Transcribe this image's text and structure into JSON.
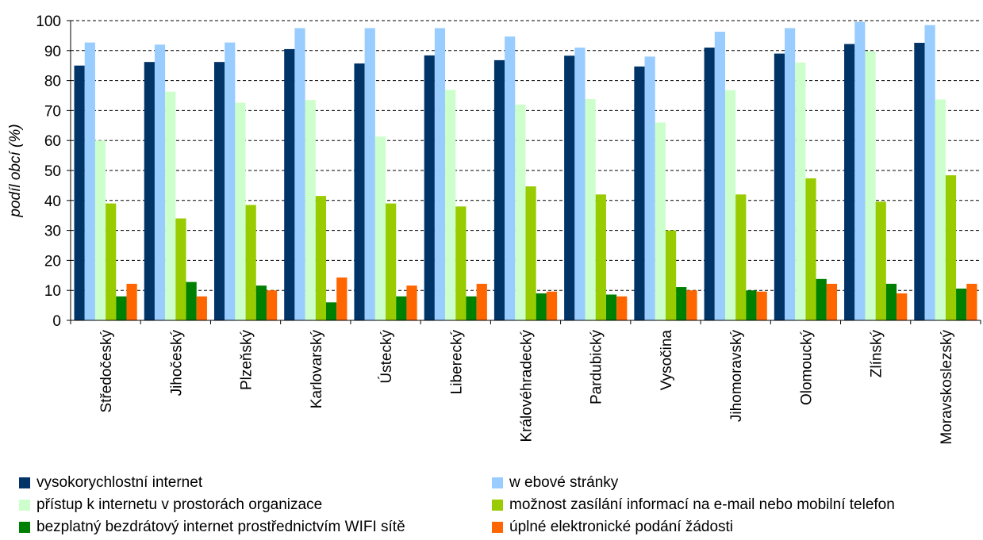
{
  "chart_data": {
    "type": "bar",
    "title": "",
    "xlabel": "",
    "ylabel": "podíl obcí (%)",
    "ylim": [
      0,
      100
    ],
    "yticks": [
      0,
      10,
      20,
      30,
      40,
      50,
      60,
      70,
      80,
      90,
      100
    ],
    "grid": true,
    "legend_position": "bottom",
    "categories": [
      "Středočeský",
      "Jihočeský",
      "Plzeňský",
      "Karlovarský",
      "Ústecký",
      "Liberecký",
      "Královéhradecký",
      "Pardubický",
      "Vysočina",
      "Jihomoravský",
      "Olomoucký",
      "Zlínský",
      "Moravskoslezský"
    ],
    "series": [
      {
        "name": "vysokorychlostní internet",
        "color": "#003366",
        "values": [
          85,
          86.2,
          86.2,
          90.5,
          85.7,
          88.4,
          86.8,
          88.3,
          84.7,
          91,
          89,
          92.2,
          92.6
        ]
      },
      {
        "name": "w ebové stránky",
        "color": "#99CCFF",
        "values": [
          92.7,
          92,
          92.7,
          97.5,
          97.5,
          97.5,
          94.7,
          91,
          88,
          96.3,
          97.5,
          99.6,
          98.5
        ]
      },
      {
        "name": "přístup k internetu v prostorách organizace",
        "color": "#CCFFCC",
        "values": [
          60,
          76.3,
          72.6,
          73.5,
          61.3,
          76.9,
          72,
          73.8,
          66,
          76.8,
          86,
          89.8,
          73.7
        ]
      },
      {
        "name": "možnost zasílání informací na e-mail nebo mobilní telefon",
        "color": "#99CC00",
        "values": [
          39,
          34,
          38.5,
          41.5,
          39,
          38,
          44.7,
          42,
          30,
          42,
          47.4,
          39.6,
          48.4
        ]
      },
      {
        "name": "bezplatný bezdrátový internet prostřednictvím WIFI sítě",
        "color": "#008000",
        "values": [
          8,
          12.8,
          11.6,
          6,
          8,
          8,
          9,
          8.6,
          11.1,
          10,
          13.8,
          12.2,
          10.6
        ]
      },
      {
        "name": "úplné elektronické podání žádosti",
        "color": "#FF6600",
        "values": [
          12.2,
          8,
          10,
          14.3,
          11.6,
          12.2,
          9.6,
          8,
          10,
          9.6,
          12.2,
          9,
          12.2
        ]
      }
    ]
  }
}
